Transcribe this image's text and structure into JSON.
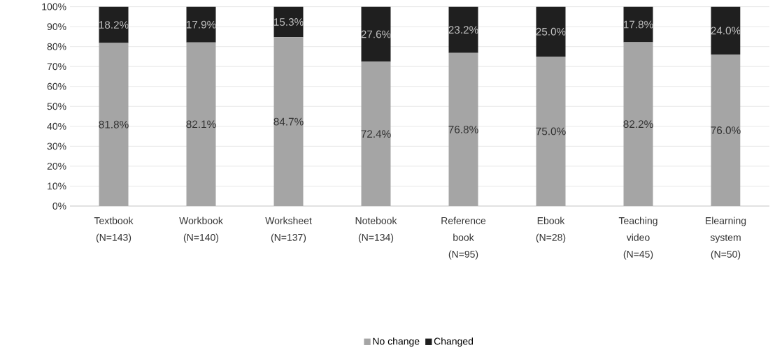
{
  "chart_data": {
    "type": "bar",
    "stacked": true,
    "categories": [
      "Textbook (N=143)",
      "Workbook (N=140)",
      "Worksheet (N=137)",
      "Notebook (N=134)",
      "Reference book (N=95)",
      "Ebook (N=28)",
      "Teaching video (N=45)",
      "Elearning system (N=50)"
    ],
    "series": [
      {
        "name": "No change",
        "color": "#a5a5a5",
        "values": [
          81.8,
          82.1,
          84.7,
          72.4,
          76.8,
          75.0,
          82.2,
          76.0
        ],
        "value_labels": [
          "81.8%",
          "82.1%",
          "84.7%",
          "72.4%",
          "76.8%",
          "75.0%",
          "82.2%",
          "76.0%"
        ]
      },
      {
        "name": "Changed",
        "color": "#1f1f1f",
        "values": [
          18.2,
          17.9,
          15.3,
          27.6,
          23.2,
          25.0,
          17.8,
          24.0
        ],
        "value_labels": [
          "18.2%",
          "17.9%",
          "15.3%",
          "27.6%",
          "23.2%",
          "25.0%",
          "17.8%",
          "24.0%"
        ]
      }
    ],
    "ylim": [
      0,
      100
    ],
    "yticks": [
      {
        "value": 0,
        "label": "0%"
      },
      {
        "value": 10,
        "label": "10%"
      },
      {
        "value": 20,
        "label": "20%"
      },
      {
        "value": 30,
        "label": "30%"
      },
      {
        "value": 40,
        "label": "40%"
      },
      {
        "value": 50,
        "label": "50%"
      },
      {
        "value": 60,
        "label": "60%"
      },
      {
        "value": 70,
        "label": "70%"
      },
      {
        "value": 80,
        "label": "80%"
      },
      {
        "value": 90,
        "label": "90%"
      },
      {
        "value": 100,
        "label": "100%"
      }
    ],
    "grid": "y",
    "legend": "bottom"
  }
}
